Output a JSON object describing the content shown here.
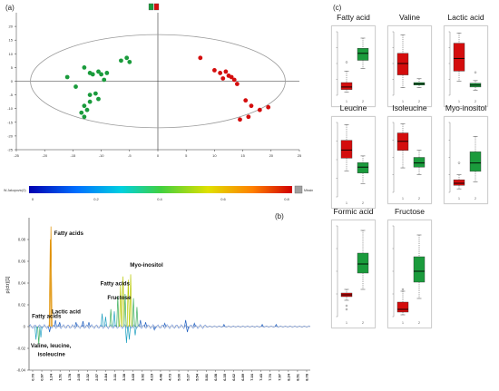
{
  "panel_labels": {
    "a": "(a)",
    "b": "(b)",
    "c": "(c)"
  },
  "colors": {
    "red": "#d40d0d",
    "green": "#1a9b3c",
    "axis": "#333333",
    "ellipse": "#9a9a9a"
  },
  "chart_data": [
    {
      "type": "scatter",
      "panel": "(a)",
      "xlim": [
        -25,
        25
      ],
      "ylim": [
        -25,
        25
      ],
      "x_ticks": [
        -25,
        -20,
        -15,
        -10,
        -5,
        0,
        5,
        10,
        15,
        20,
        25
      ],
      "y_ticks": [
        20,
        15,
        10,
        5,
        0,
        -5,
        -10,
        -15,
        -20,
        -25
      ],
      "x_tick_labels": [
        "-25",
        "-20",
        "-15",
        "-10",
        "-5",
        "0",
        "5",
        "10",
        "15",
        "20",
        "25"
      ],
      "y_tick_labels": [
        "20",
        "15",
        "10",
        "5",
        "0",
        "-5",
        "-10",
        "-15",
        "-20",
        "-25"
      ],
      "legend_colors": [
        "#1a9b3c",
        "#d40d0d"
      ],
      "series": [
        {
          "color": "#1a9b3c",
          "points": [
            [
              -16,
              1.5
            ],
            [
              -14.5,
              -2
            ],
            [
              -13,
              5
            ],
            [
              -12,
              3
            ],
            [
              -11.5,
              2.5
            ],
            [
              -10.5,
              3.5
            ],
            [
              -10,
              2.5
            ],
            [
              -9.5,
              0.5
            ],
            [
              -9,
              3
            ],
            [
              -6.5,
              7.5
            ],
            [
              -5.5,
              8.5
            ],
            [
              -5,
              7
            ],
            [
              -12,
              -5
            ],
            [
              -11,
              -4.5
            ],
            [
              -10.5,
              -6.5
            ],
            [
              -12,
              -7.5
            ],
            [
              -13,
              -9
            ],
            [
              -12.5,
              -10.5
            ],
            [
              -13.5,
              -11.5
            ],
            [
              -13,
              -13
            ]
          ]
        },
        {
          "color": "#d40d0d",
          "points": [
            [
              7.5,
              8.5
            ],
            [
              10,
              4
            ],
            [
              11,
              3
            ],
            [
              12,
              3.5
            ],
            [
              12.5,
              2
            ],
            [
              11.5,
              1
            ],
            [
              13,
              1.5
            ],
            [
              13.5,
              0.5
            ],
            [
              14,
              -1
            ],
            [
              15.5,
              -7
            ],
            [
              16.5,
              -9
            ],
            [
              18,
              -10.5
            ],
            [
              19.5,
              -9.5
            ],
            [
              16,
              -13
            ],
            [
              14.5,
              -14
            ]
          ]
        }
      ]
    },
    {
      "type": "line",
      "panel": "(b)",
      "ylabel": "p(ctr)[1]",
      "ylim": [
        -0.04,
        0.1
      ],
      "y_ticks": [
        0.08,
        0.06,
        0.04,
        0.02,
        0,
        -0.02,
        -0.04
      ],
      "y_tick_labels": [
        "0.08",
        "0.06",
        "0.04",
        "0.02",
        "0",
        "-0.02",
        "-0.04"
      ],
      "x_tick_labels": [
        "0.70",
        "0.97",
        "1.24",
        "1.51",
        "1.78",
        "2.05",
        "2.32",
        "2.57",
        "2.84",
        "3.11",
        "3.38",
        "3.65",
        "3.92",
        "4.19",
        "4.46",
        "4.73",
        "5.00",
        "5.27",
        "5.54",
        "5.81",
        "6.08",
        "6.35",
        "6.62",
        "6.89",
        "7.16",
        "7.43",
        "7.70",
        "7.97",
        "8.24",
        "8.51",
        "8.78"
      ],
      "colorbar": {
        "left_label": "W.Jakupovic(0)",
        "ticks": [
          "0",
          "0.2",
          "0.4",
          "0.6",
          "0.8"
        ],
        "right_label": "Missing"
      },
      "peaks": [
        {
          "x": 1.33,
          "y": 0.092
        },
        {
          "x": 1.31,
          "y": 0.08
        },
        {
          "x": 1.29,
          "y": -0.005
        },
        {
          "x": 0.9,
          "y": -0.012
        },
        {
          "x": 0.98,
          "y": -0.016
        },
        {
          "x": 1.04,
          "y": -0.01
        },
        {
          "x": 1.46,
          "y": 0.006
        },
        {
          "x": 1.58,
          "y": 0.004
        },
        {
          "x": 2.05,
          "y": 0.004
        },
        {
          "x": 2.25,
          "y": 0.005
        },
        {
          "x": 2.42,
          "y": 0.004
        },
        {
          "x": 2.8,
          "y": 0.012
        },
        {
          "x": 2.9,
          "y": 0.009
        },
        {
          "x": 3.05,
          "y": 0.016
        },
        {
          "x": 3.15,
          "y": 0.014
        },
        {
          "x": 3.25,
          "y": 0.028
        },
        {
          "x": 3.33,
          "y": 0.038
        },
        {
          "x": 3.4,
          "y": 0.046
        },
        {
          "x": 3.46,
          "y": 0.03
        },
        {
          "x": 3.55,
          "y": 0.043
        },
        {
          "x": 3.62,
          "y": 0.048
        },
        {
          "x": 3.7,
          "y": 0.026
        },
        {
          "x": 3.8,
          "y": 0.018
        },
        {
          "x": 3.9,
          "y": 0.006
        },
        {
          "x": 4.05,
          "y": 0.004
        },
        {
          "x": 4.3,
          "y": -0.003
        },
        {
          "x": 3.5,
          "y": -0.015
        },
        {
          "x": 3.58,
          "y": -0.012
        },
        {
          "x": 3.75,
          "y": -0.008
        },
        {
          "x": 4.6,
          "y": 0.003
        },
        {
          "x": 5.2,
          "y": 0.006
        },
        {
          "x": 5.25,
          "y": -0.005
        },
        {
          "x": 5.45,
          "y": 0.003
        },
        {
          "x": 6.3,
          "y": 0.002
        },
        {
          "x": 7.4,
          "y": 0.002
        },
        {
          "x": 7.8,
          "y": 0.002
        }
      ],
      "annotations": [
        {
          "text": "Fatty acids",
          "x": 1.42,
          "y": 0.084
        },
        {
          "text": "Fatty acids",
          "x": 0.78,
          "y": 0.008
        },
        {
          "text": "Lactic acid",
          "x": 1.35,
          "y": 0.012
        },
        {
          "text": "Fatty acids",
          "x": 2.75,
          "y": 0.038
        },
        {
          "text": "Fructose",
          "x": 2.95,
          "y": 0.025
        },
        {
          "text": "Myo-inositol",
          "x": 3.6,
          "y": 0.055
        },
        {
          "text": "Valine, leucine,",
          "x": 0.75,
          "y": -0.019
        },
        {
          "text": "isoleucine",
          "x": 0.95,
          "y": -0.027
        }
      ]
    },
    {
      "type": "box",
      "panel": "(c)",
      "group_colors": [
        "#d40d0d",
        "#1a9b3c"
      ],
      "group_tick_labels": [
        "1",
        "2"
      ],
      "boxes": [
        {
          "title": "Fatty acid",
          "groups": [
            {
              "min": 0.05,
              "q1": 0.09,
              "med": 0.13,
              "q3": 0.2,
              "max": 0.38,
              "out": [
                0.52
              ]
            },
            {
              "min": 0.42,
              "q1": 0.55,
              "med": 0.66,
              "q3": 0.74,
              "max": 0.9
            }
          ]
        },
        {
          "title": "Valine",
          "groups": [
            {
              "min": 0.12,
              "q1": 0.32,
              "med": 0.5,
              "q3": 0.66,
              "max": 0.95
            },
            {
              "min": 0.12,
              "q1": 0.16,
              "med": 0.18,
              "q3": 0.2,
              "max": 0.26
            }
          ]
        },
        {
          "title": "Lactic acid",
          "groups": [
            {
              "min": 0.22,
              "q1": 0.38,
              "med": 0.58,
              "q3": 0.82,
              "max": 0.98
            },
            {
              "min": 0.08,
              "q1": 0.13,
              "med": 0.16,
              "q3": 0.19,
              "max": 0.23,
              "out": [
                0.36
              ]
            }
          ]
        },
        {
          "title": "Leucine",
          "groups": [
            {
              "min": 0.35,
              "q1": 0.52,
              "med": 0.63,
              "q3": 0.76,
              "max": 0.97
            },
            {
              "min": 0.18,
              "q1": 0.32,
              "med": 0.4,
              "q3": 0.46,
              "max": 0.55
            }
          ]
        },
        {
          "title": "Isoleucine",
          "groups": [
            {
              "min": 0.35,
              "q1": 0.6,
              "med": 0.73,
              "q3": 0.85,
              "max": 0.98
            },
            {
              "min": 0.25,
              "q1": 0.36,
              "med": 0.42,
              "q3": 0.5,
              "max": 0.6
            }
          ]
        },
        {
          "title": "Myo-inositol",
          "groups": [
            {
              "min": 0.05,
              "q1": 0.1,
              "med": 0.13,
              "q3": 0.18,
              "max": 0.25,
              "out": [
                0.42
              ]
            },
            {
              "min": 0.15,
              "q1": 0.3,
              "med": 0.42,
              "q3": 0.58,
              "max": 0.8
            }
          ]
        },
        {
          "title": "Formic acid",
          "groups": [
            {
              "min": 0.18,
              "q1": 0.22,
              "med": 0.24,
              "q3": 0.26,
              "max": 0.3,
              "out": [
                0.12,
                0.08
              ]
            },
            {
              "min": 0.3,
              "q1": 0.48,
              "med": 0.58,
              "q3": 0.7,
              "max": 0.95
            }
          ]
        },
        {
          "title": "Fructose",
          "groups": [
            {
              "min": 0.02,
              "q1": 0.05,
              "med": 0.08,
              "q3": 0.16,
              "max": 0.28,
              "out": [
                0.3
              ]
            },
            {
              "min": 0.2,
              "q1": 0.38,
              "med": 0.5,
              "q3": 0.66,
              "max": 0.9
            }
          ]
        }
      ]
    }
  ]
}
